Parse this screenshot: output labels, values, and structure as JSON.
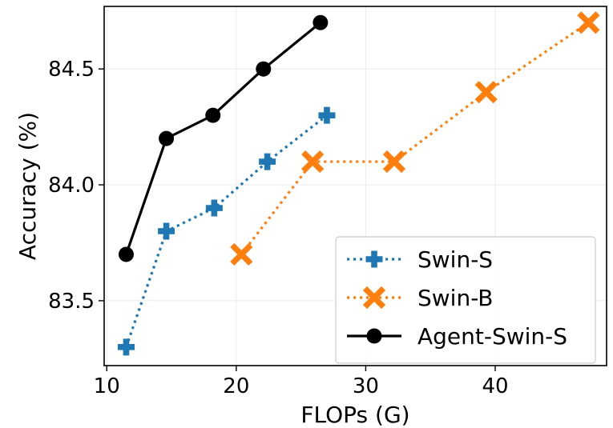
{
  "chart_data": {
    "type": "line",
    "title": "",
    "xlabel": "FLOPs (G)",
    "ylabel": "Accuracy (%)",
    "xlim": [
      9.8,
      48.6
    ],
    "ylim": [
      83.22,
      84.77
    ],
    "xticks": [
      10,
      20,
      30,
      40
    ],
    "xtick_labels": [
      "10",
      "20",
      "30",
      "40"
    ],
    "yticks": [
      83.5,
      84.0,
      84.5
    ],
    "ytick_labels": [
      "83.5",
      "84.0",
      "84.5"
    ],
    "grid": true,
    "legend_position": "bottom-right",
    "series": [
      {
        "name": "Swin-S",
        "color": "#1f77b4",
        "line_style": "dotted",
        "marker": "plus",
        "x": [
          11.5,
          14.6,
          18.3,
          22.4,
          27.0
        ],
        "y": [
          83.3,
          83.8,
          83.9,
          84.1,
          84.3
        ]
      },
      {
        "name": "Swin-B",
        "color": "#ff7f0e",
        "line_style": "dotted",
        "marker": "x",
        "x": [
          20.4,
          25.9,
          32.2,
          39.3,
          47.2
        ],
        "y": [
          83.7,
          84.1,
          84.1,
          84.4,
          84.7
        ]
      },
      {
        "name": "Agent-Swin-S",
        "color": "#000000",
        "line_style": "solid",
        "marker": "circle",
        "x": [
          11.5,
          14.6,
          18.2,
          22.1,
          26.5
        ],
        "y": [
          83.7,
          84.2,
          84.3,
          84.5,
          84.7
        ]
      }
    ]
  }
}
